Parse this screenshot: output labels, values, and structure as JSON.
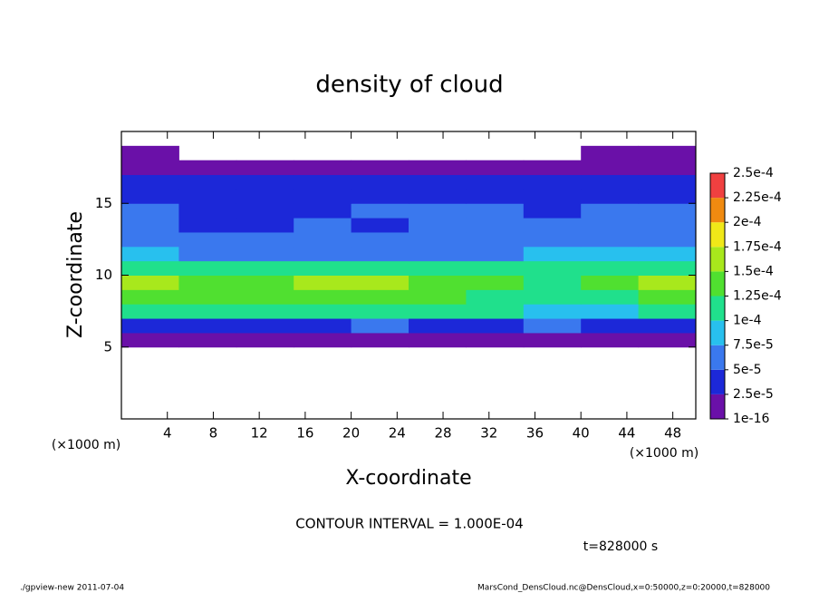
{
  "chart_data": {
    "type": "contour",
    "title": "density of cloud",
    "xlabel": "X-coordinate",
    "ylabel": "Z-coordinate",
    "x_unit": "(×1000 m)",
    "y_unit": "(×1000 m)",
    "annotations": [
      "CONTOUR INTERVAL = 1.000E-04",
      "t=828000 s"
    ],
    "footer_left": "./gpview-new  2011-07-04",
    "footer_right": "MarsCond_DensCloud.nc@DensCloud,x=0:50000,z=0:20000,t=828000",
    "xlim": [
      0,
      50
    ],
    "ylim": [
      0,
      20
    ],
    "xticks": [
      4,
      8,
      12,
      16,
      20,
      24,
      28,
      32,
      36,
      40,
      44,
      48
    ],
    "yticks": [
      5,
      10,
      15
    ],
    "x": [
      0,
      5,
      10,
      15,
      20,
      25,
      30,
      35,
      40,
      45,
      50
    ],
    "z": [
      0,
      1,
      2,
      3,
      4,
      5,
      6,
      7,
      8,
      9,
      10,
      11,
      12,
      13,
      14,
      15,
      16,
      17,
      18,
      19,
      20
    ],
    "field": [
      [
        null,
        null,
        null,
        null,
        null,
        null,
        null,
        null,
        null,
        null
      ],
      [
        null,
        null,
        null,
        null,
        null,
        null,
        null,
        null,
        null,
        null
      ],
      [
        null,
        null,
        null,
        null,
        null,
        null,
        null,
        null,
        null,
        null
      ],
      [
        null,
        null,
        null,
        null,
        null,
        null,
        null,
        null,
        null,
        null
      ],
      [
        null,
        null,
        null,
        null,
        null,
        null,
        null,
        null,
        null,
        null
      ],
      [
        2e-05,
        1.5e-05,
        1e-05,
        2e-05,
        2e-05,
        1.5e-05,
        2e-05,
        1e-05,
        1.5e-05,
        2e-05
      ],
      [
        4e-05,
        4.5e-05,
        4e-05,
        4.5e-05,
        5e-05,
        4e-05,
        4.5e-05,
        5e-05,
        4e-05,
        4.5e-05
      ],
      [
        0.0001,
        0.00011,
        0.0001,
        0.00011,
        0.0001,
        0.00011,
        0.0001,
        9e-05,
        8e-05,
        0.00011
      ],
      [
        0.00014,
        0.00013,
        0.00014,
        0.00013,
        0.00014,
        0.00013,
        0.00012,
        0.00011,
        0.00012,
        0.00014
      ],
      [
        0.00016,
        0.00014,
        0.00013,
        0.00015,
        0.00015,
        0.00014,
        0.00013,
        0.00012,
        0.00013,
        0.00016
      ],
      [
        0.00012,
        0.00011,
        0.0001,
        0.00011,
        0.00011,
        0.0001,
        0.0001,
        0.00011,
        0.00011,
        0.00012
      ],
      [
        8e-05,
        7e-05,
        6e-05,
        7e-05,
        7e-05,
        6e-05,
        7e-05,
        8e-05,
        8e-05,
        8e-05
      ],
      [
        6e-05,
        5e-05,
        5e-05,
        6e-05,
        5e-05,
        5e-05,
        6e-05,
        7e-05,
        6e-05,
        6e-05
      ],
      [
        5e-05,
        4e-05,
        4e-05,
        5e-05,
        4e-05,
        5e-05,
        5e-05,
        5e-05,
        5e-05,
        5e-05
      ],
      [
        5e-05,
        4e-05,
        4e-05,
        4e-05,
        5e-05,
        5e-05,
        5e-05,
        4e-05,
        5e-05,
        5e-05
      ],
      [
        4e-05,
        4e-05,
        4e-05,
        3e-05,
        4e-05,
        4e-05,
        4e-05,
        4e-05,
        4e-05,
        4e-05
      ],
      [
        3e-05,
        3e-05,
        3e-05,
        3e-05,
        3e-05,
        3e-05,
        3e-05,
        3e-05,
        3e-05,
        3e-05
      ],
      [
        5e-06,
        5e-06,
        5e-06,
        5e-06,
        5e-06,
        5e-06,
        5e-06,
        5e-06,
        5e-06,
        5e-06
      ],
      [
        2e-06,
        null,
        null,
        null,
        null,
        null,
        null,
        null,
        2e-06,
        2e-06
      ],
      [
        null,
        null,
        null,
        null,
        null,
        null,
        null,
        null,
        null,
        null
      ]
    ],
    "levels": [
      {
        "value": 1e-16,
        "label": "1e-16"
      },
      {
        "value": 2.5e-05,
        "label": "2.5e-5"
      },
      {
        "value": 5e-05,
        "label": "5e-5"
      },
      {
        "value": 7.5e-05,
        "label": "7.5e-5"
      },
      {
        "value": 0.0001,
        "label": "1e-4"
      },
      {
        "value": 0.000125,
        "label": "1.25e-4"
      },
      {
        "value": 0.00015,
        "label": "1.5e-4"
      },
      {
        "value": 0.000175,
        "label": "1.75e-4"
      },
      {
        "value": 0.0002,
        "label": "2e-4"
      },
      {
        "value": 0.000225,
        "label": "2.25e-4"
      },
      {
        "value": 0.00025,
        "label": "2.5e-4"
      }
    ],
    "colors": [
      "#6a10a8",
      "#1c28d8",
      "#3a78ee",
      "#28c0ee",
      "#20e08c",
      "#50e030",
      "#a8e81c",
      "#f0e818",
      "#f08a10",
      "#f04040"
    ]
  }
}
